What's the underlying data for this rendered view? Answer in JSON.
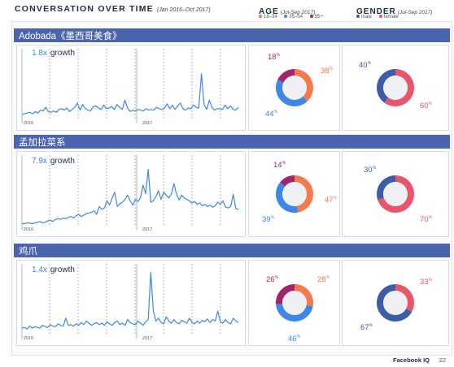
{
  "header": {
    "title": "CONVERSATION OVER TIME",
    "subtitle": "(Jan 2016–Oct 2017)",
    "age_title": "AGE",
    "age_subtitle": "(Jul-Sep 2017)",
    "gender_title": "GENDER",
    "gender_subtitle": "(Jul-Sep 2017)"
  },
  "legend": {
    "age": [
      {
        "label": "18–34",
        "color": "#f47a4e"
      },
      {
        "label": "35–54",
        "color": "#3d87e6"
      },
      {
        "label": "55+",
        "color": "#a2256a"
      }
    ],
    "gender": [
      {
        "label": "male",
        "color": "#3d5da8"
      },
      {
        "label": "female",
        "color": "#e8566c"
      }
    ]
  },
  "colors": {
    "line": "#3d87e6",
    "bar": "#4a64ad",
    "donut_track": "#eef0f4"
  },
  "footer": {
    "brand": "Facebook IQ",
    "page": "22"
  },
  "chart_data": [
    {
      "type": "line",
      "title": "Adobada《墨西哥美食》",
      "growth_value": "1.8x",
      "growth_label": "growth",
      "x_labels": [
        "2016",
        "2017"
      ],
      "values": [
        8,
        9,
        10,
        11,
        9,
        12,
        10,
        14,
        13,
        18,
        12,
        11,
        13,
        11,
        15,
        16,
        14,
        17,
        12,
        15,
        18,
        24,
        14,
        22,
        16,
        14,
        13,
        19,
        20,
        17,
        15,
        21,
        16,
        17,
        19,
        15,
        22,
        18,
        15,
        28,
        17,
        12,
        14,
        13,
        15,
        14,
        13,
        16,
        14,
        15,
        14,
        18,
        16,
        15,
        17,
        23,
        16,
        21,
        15,
        20,
        24,
        16,
        14,
        17,
        16,
        21,
        18,
        17,
        65,
        22,
        15,
        28,
        18,
        14,
        16,
        16,
        15,
        21,
        16,
        20,
        15,
        14,
        18
      ],
      "ylim": [
        0,
        100
      ]
    },
    {
      "type": "donut",
      "title": "AGE",
      "subtitle": "(Jul-Sep 2017)",
      "labels": [
        "18–34",
        "35–54",
        "55+"
      ],
      "values": [
        38,
        44,
        18
      ],
      "colors": [
        "#f47a4e",
        "#3d87e6",
        "#a2256a"
      ]
    },
    {
      "type": "donut",
      "title": "GENDER",
      "subtitle": "(Jul-Sep 2017)",
      "labels": [
        "female",
        "male"
      ],
      "values": [
        60,
        40
      ],
      "colors": [
        "#e8566c",
        "#3d5da8"
      ]
    },
    {
      "type": "line",
      "title": "孟加拉菜系",
      "growth_value": "7.9x",
      "growth_label": "growth",
      "x_labels": [
        "2016",
        "2017"
      ],
      "values": [
        4,
        4,
        5,
        5,
        4,
        5,
        6,
        7,
        5,
        6,
        8,
        9,
        7,
        10,
        11,
        10,
        12,
        11,
        13,
        14,
        12,
        15,
        17,
        14,
        16,
        18,
        19,
        20,
        22,
        17,
        28,
        24,
        26,
        36,
        30,
        40,
        48,
        28,
        32,
        34,
        38,
        44,
        36,
        30,
        38,
        35,
        40,
        58,
        46,
        80,
        34,
        36,
        42,
        50,
        38,
        48,
        44,
        40,
        46,
        60,
        45,
        37,
        44,
        40,
        38,
        36,
        33,
        35,
        31,
        33,
        29,
        31,
        28,
        30,
        27,
        29,
        34,
        31,
        36,
        27,
        26,
        28,
        45,
        25,
        24
      ],
      "ylim": [
        0,
        100
      ]
    },
    {
      "type": "donut",
      "title": "AGE",
      "subtitle": "(Jul-Sep 2017)",
      "labels": [
        "18–34",
        "35–54",
        "55+"
      ],
      "values": [
        47,
        39,
        14
      ],
      "colors": [
        "#f47a4e",
        "#3d87e6",
        "#a2256a"
      ]
    },
    {
      "type": "donut",
      "title": "GENDER",
      "subtitle": "(Jul-Sep 2017)",
      "labels": [
        "female",
        "male"
      ],
      "values": [
        70,
        30
      ],
      "colors": [
        "#e8566c",
        "#3d5da8"
      ]
    },
    {
      "type": "line",
      "title": "鸡爪",
      "growth_value": "1.4x",
      "growth_label": "growth",
      "x_labels": [
        "2016",
        "2017"
      ],
      "values": [
        10,
        11,
        9,
        13,
        10,
        12,
        11,
        10,
        14,
        12,
        11,
        15,
        13,
        12,
        16,
        14,
        13,
        24,
        14,
        15,
        13,
        16,
        14,
        18,
        15,
        20,
        17,
        14,
        16,
        18,
        15,
        17,
        14,
        19,
        16,
        14,
        18,
        20,
        15,
        17,
        14,
        22,
        18,
        16,
        15,
        20,
        17,
        14,
        19,
        22,
        88,
        34,
        20,
        24,
        18,
        16,
        26,
        20,
        17,
        22,
        18,
        16,
        21,
        19,
        17,
        24,
        18,
        16,
        20,
        17,
        21,
        19,
        23,
        18,
        22,
        20,
        34,
        19,
        17,
        22,
        18,
        16,
        24,
        20,
        18
      ],
      "ylim": [
        0,
        100
      ]
    },
    {
      "type": "donut",
      "title": "AGE",
      "subtitle": "(Jul-Sep 2017)",
      "labels": [
        "18–34",
        "35–54",
        "55+"
      ],
      "values": [
        28,
        46,
        26
      ],
      "colors": [
        "#f47a4e",
        "#3d87e6",
        "#a2256a"
      ]
    },
    {
      "type": "donut",
      "title": "GENDER",
      "subtitle": "(Jul-Sep 2017)",
      "labels": [
        "female",
        "male"
      ],
      "values": [
        33,
        67
      ],
      "colors": [
        "#e8566c",
        "#3d5da8"
      ]
    }
  ]
}
